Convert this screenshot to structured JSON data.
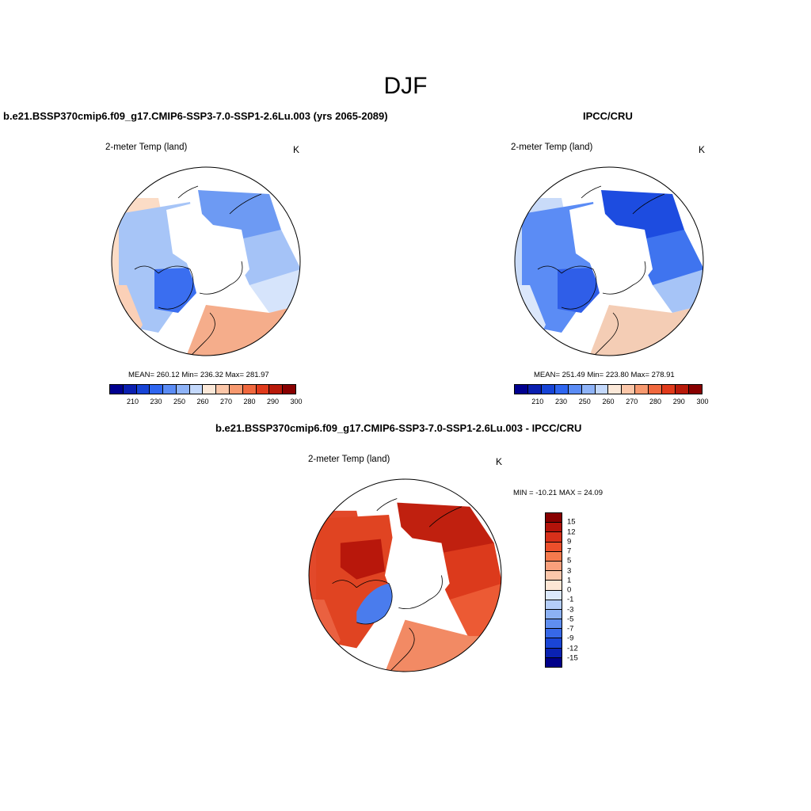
{
  "figure_title": "DJF",
  "variable_label": "2-meter Temp (land)",
  "unit": "K",
  "panels": {
    "model": {
      "title": "b.e21.BSSP370cmip6.f09_g17.CMIP6-SSP3-7.0-SSP1-2.6Lu.003 (yrs 2065-2089)",
      "stats": "MEAN= 260.12  Min= 236.32  Max= 281.97"
    },
    "obs": {
      "title": "IPCC/CRU",
      "stats": "MEAN= 251.49  Min= 223.80  Max= 278.91"
    },
    "diff": {
      "title": "b.e21.BSSP370cmip6.f09_g17.CMIP6-SSP3-7.0-SSP1-2.6Lu.003 - IPCC/CRU",
      "stats": "MIN = -10.21 MAX =  24.09"
    }
  },
  "abs_colorbar": {
    "colors": [
      "#00008f",
      "#0a1fb0",
      "#1744d6",
      "#2f66f0",
      "#5b8cf5",
      "#8eb3f8",
      "#c3d8fb",
      "#fbe8d8",
      "#fbc6a8",
      "#f7996f",
      "#f0683e",
      "#e03a1b",
      "#b81a0a",
      "#880000"
    ],
    "tick_labels": [
      "210",
      "230",
      "250",
      "260",
      "270",
      "280",
      "290",
      "300"
    ],
    "tick_positions": [
      1,
      2,
      3,
      4,
      5,
      6,
      7,
      8
    ]
  },
  "diff_colorbar": {
    "colors": [
      "#880000",
      "#b3130a",
      "#d7301a",
      "#ec4f2b",
      "#f67a4d",
      "#f9a07c",
      "#fbc7ab",
      "#fde6d5",
      "#dbe8fb",
      "#b4cdf8",
      "#8cb1f4",
      "#5f8ef0",
      "#3768e8",
      "#1a45d6",
      "#0a22b2",
      "#000089"
    ],
    "tick_labels": [
      "15",
      "12",
      "9",
      "7",
      "5",
      "3",
      "1",
      "0",
      "-1",
      "-3",
      "-5",
      "-7",
      "-9",
      "-12",
      "-15"
    ]
  },
  "map_colors": {
    "model": {
      "north_america": "#a7c5f7",
      "hudson": "#3a6ef0",
      "greenland_ocean": "#ffffff",
      "eurasia_east": "#6d9af3",
      "eurasia_mid": "#a5c3f7",
      "eurasia_west": "#d6e4fb",
      "europe": "#f5ad8b",
      "alaska": "#fbdcc6",
      "south_edge": "#fbd0b7"
    },
    "obs": {
      "north_america": "#5b8cf5",
      "hudson": "#2f5ee8",
      "greenland_ocean": "#ffffff",
      "eurasia_east": "#1d4ce0",
      "eurasia_mid": "#3f74ef",
      "eurasia_west": "#a6c4f7",
      "europe": "#f4cdb5",
      "alaska": "#c9dbf9",
      "south_edge": "#dbe7fb"
    },
    "diff": {
      "north_america": "#e04422",
      "hudson": "#b8170b",
      "greenland": "#4a7ced",
      "eurasia_east": "#c0200f",
      "eurasia_mid": "#dc3a1c",
      "eurasia_west": "#ec5a34",
      "europe": "#f28a64",
      "alaska": "#e2492a",
      "south_edge": "#ea6140"
    }
  }
}
